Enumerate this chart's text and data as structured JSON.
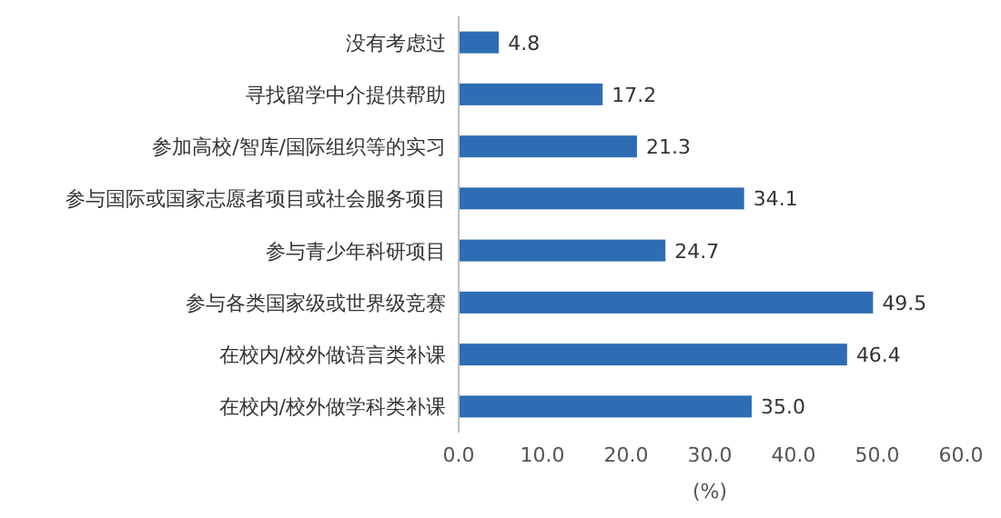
{
  "chart_data": {
    "type": "bar",
    "orientation": "horizontal",
    "xlabel": "(%)",
    "categories": [
      "没有考虑过",
      "寻找留学中介提供帮助",
      "参加高校/智库/国际组织等的实习",
      "参与国际或国家志愿者项目或社会服务项目",
      "参与青少年科研项目",
      "参与各类国家级或世界级竞赛",
      "在校内/校外做语言类补课",
      "在校内/校外做学科类补课"
    ],
    "values": [
      4.8,
      17.2,
      21.3,
      34.1,
      24.7,
      49.5,
      46.4,
      35
    ],
    "value_labels": [
      "4.8",
      "17.2",
      "21.3",
      "34.1",
      "24.7",
      "49.5",
      "46.4",
      "35.0"
    ],
    "color": "#2e6db4",
    "xlim": [
      0,
      60
    ],
    "xticks": [
      {
        "value": 0,
        "label": "0.0"
      },
      {
        "value": 10,
        "label": "10.0"
      },
      {
        "value": 20,
        "label": "20.0"
      },
      {
        "value": 30,
        "label": "30.0"
      },
      {
        "value": 40,
        "label": "40.0"
      },
      {
        "value": 50,
        "label": "50.0"
      },
      {
        "value": 60,
        "label": "60.0"
      }
    ],
    "grid": false
  }
}
